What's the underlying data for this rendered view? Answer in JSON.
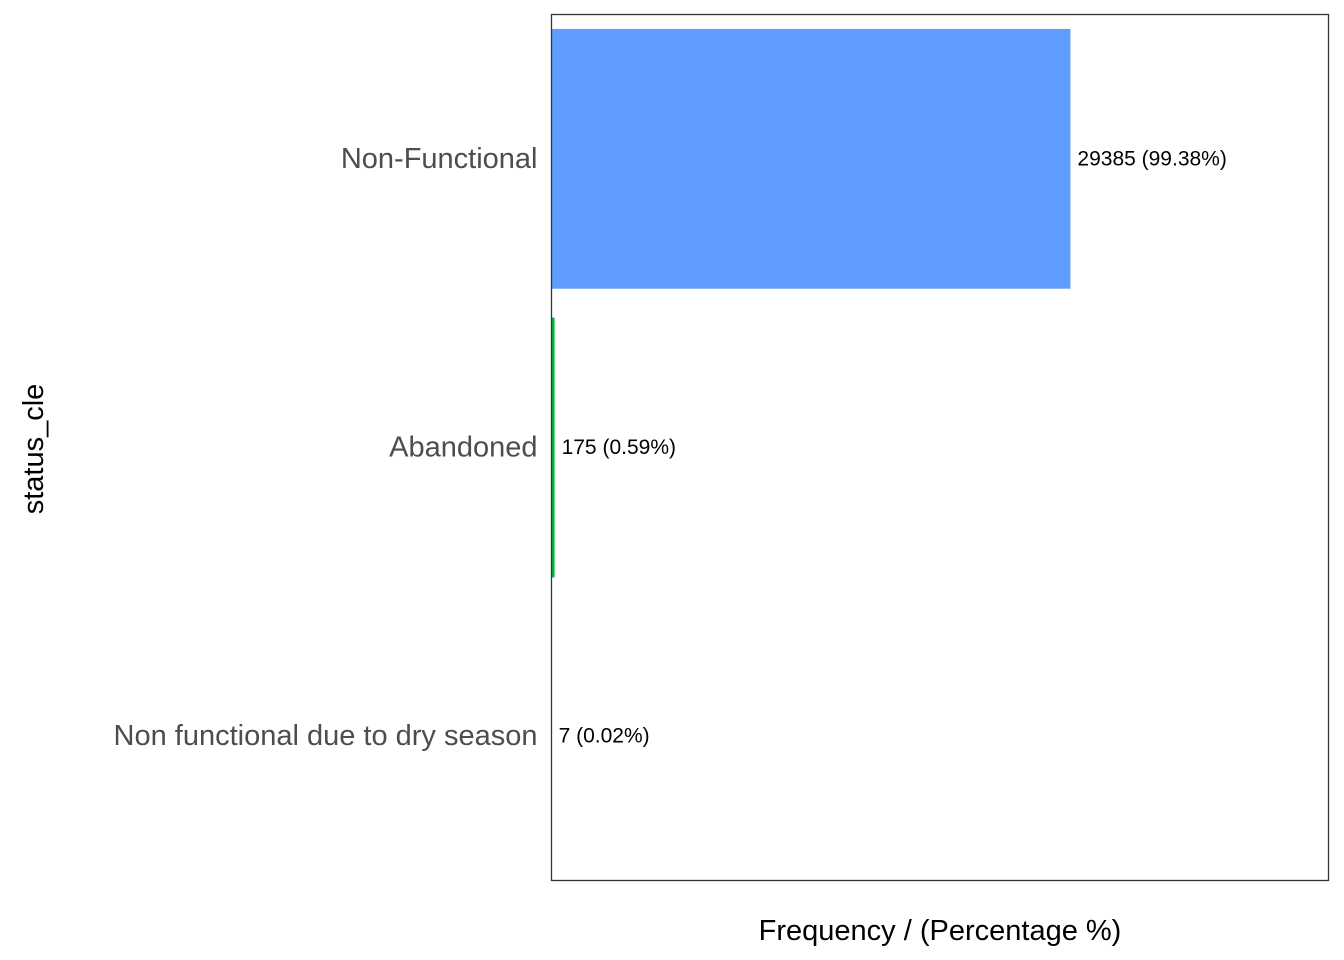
{
  "chart_data": {
    "type": "bar",
    "orientation": "horizontal",
    "categories": [
      "Non-Functional",
      "Abandoned",
      "Non functional due to dry season"
    ],
    "values": [
      29385,
      175,
      7
    ],
    "data_labels": [
      "29385 (99.38%)",
      "175 (0.59%)",
      "7 (0.02%)"
    ],
    "colors": [
      "#619CFF",
      "#00BA38",
      "#F8766D"
    ],
    "title": "",
    "xlabel": "Frequency / (Percentage %)",
    "ylabel": "status_cle",
    "xlim": [
      0,
      44000
    ],
    "grid": false,
    "x_ticks_shown": false
  }
}
